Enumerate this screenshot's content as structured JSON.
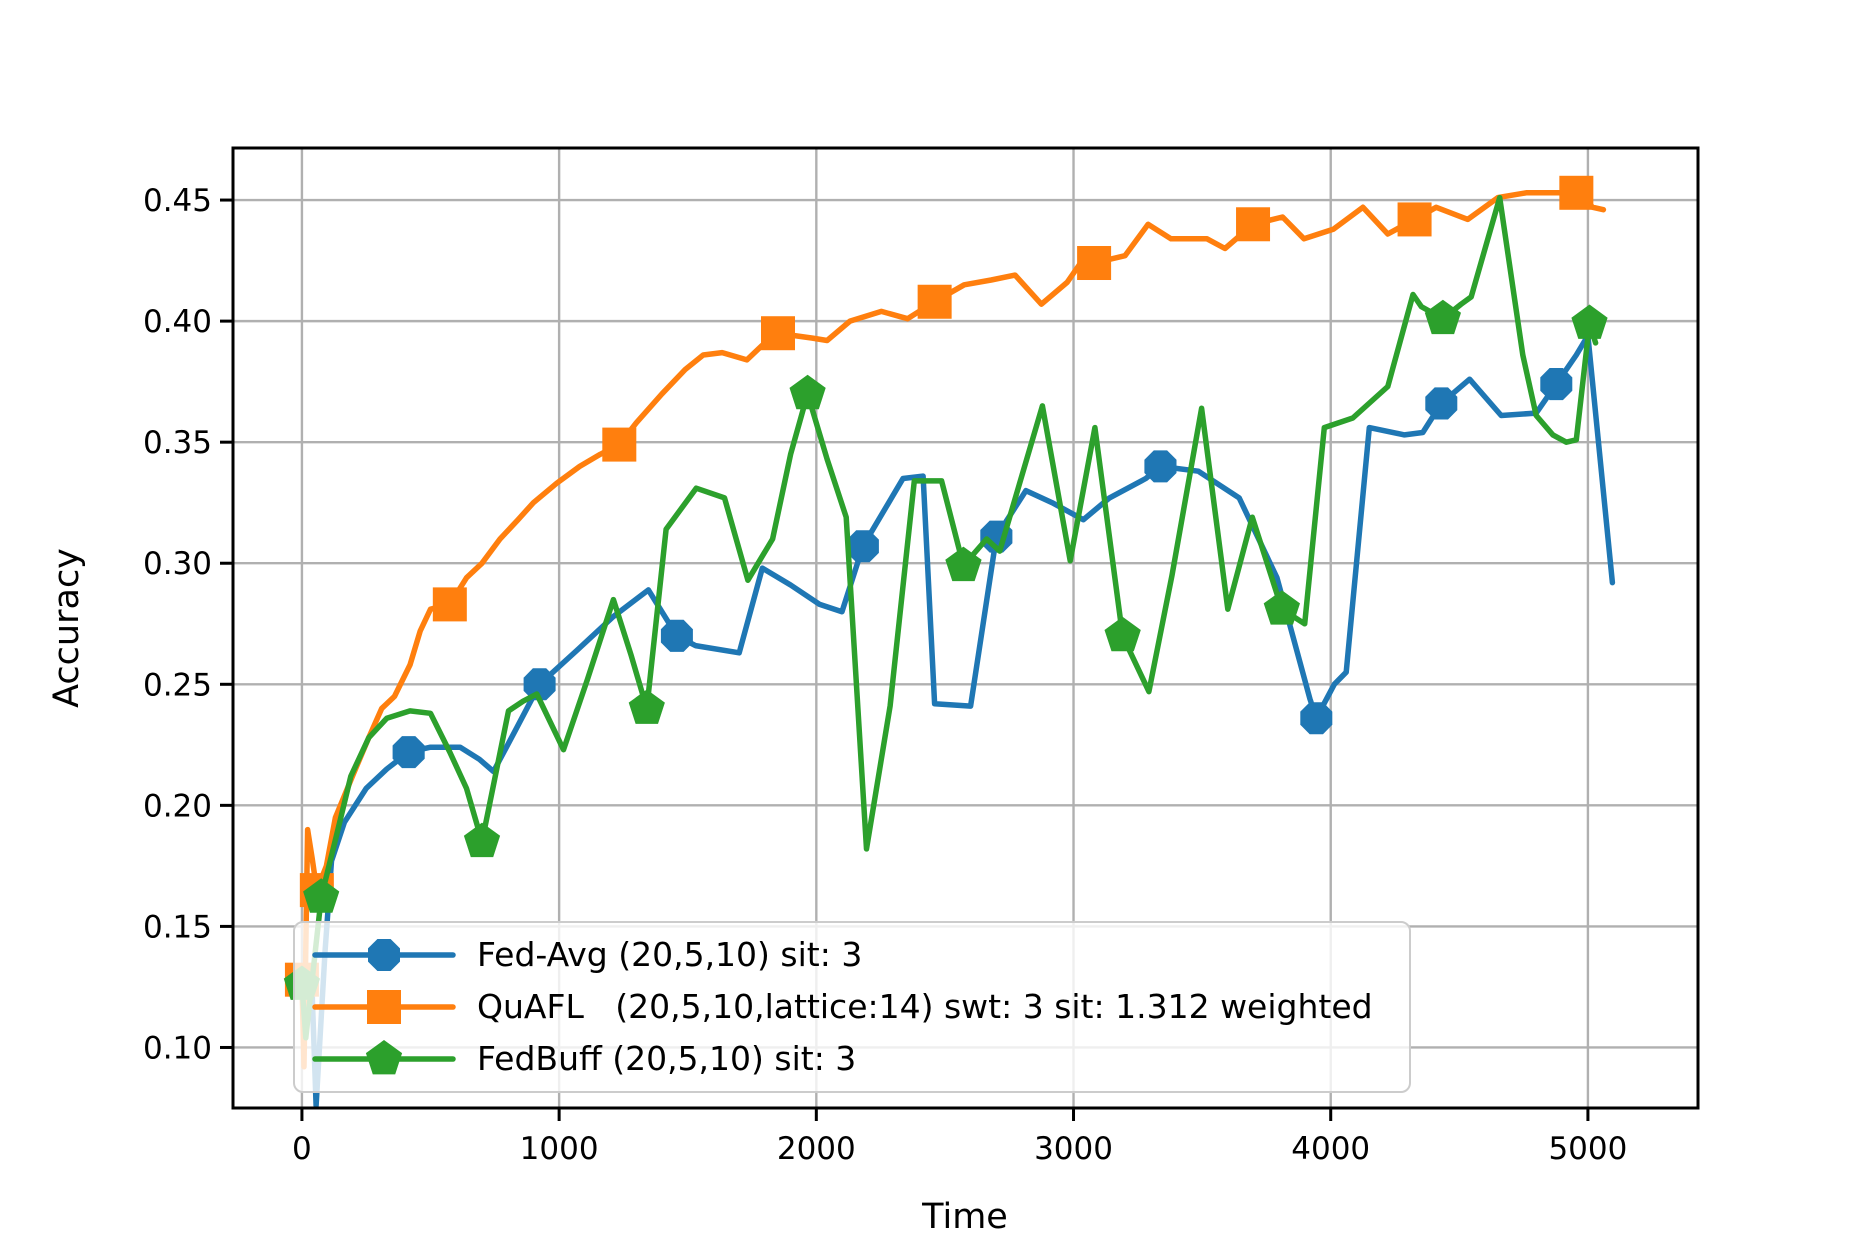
{
  "chart_data": {
    "type": "line",
    "title": "",
    "xlabel": "Time",
    "ylabel": "Accuracy",
    "xlim": [
      -268,
      5428
    ],
    "ylim": [
      0.075,
      0.4715
    ],
    "xticks": [
      0,
      1000,
      2000,
      3000,
      4000,
      5000
    ],
    "yticks": [
      0.1,
      0.15,
      0.2,
      0.25,
      0.3,
      0.35,
      0.4,
      0.45
    ],
    "grid": true,
    "grid_color": "#b0b0b0",
    "legend_position": "lower left",
    "series": [
      {
        "name": "Fed-Avg (20,5,10) sit: 3",
        "color": "#1f77b4",
        "marker": "octagon",
        "line": [
          [
            0,
            0.124
          ],
          [
            40,
            0.122
          ],
          [
            55,
            0.076
          ],
          [
            90,
            0.14
          ],
          [
            115,
            0.177
          ],
          [
            165,
            0.193
          ],
          [
            250,
            0.207
          ],
          [
            330,
            0.215
          ],
          [
            415,
            0.222
          ],
          [
            500,
            0.224
          ],
          [
            615,
            0.224
          ],
          [
            690,
            0.219
          ],
          [
            745,
            0.214
          ],
          [
            830,
            0.231
          ],
          [
            924,
            0.25
          ],
          [
            1069,
            0.264
          ],
          [
            1211,
            0.278
          ],
          [
            1347,
            0.289
          ],
          [
            1458,
            0.27
          ],
          [
            1530,
            0.266
          ],
          [
            1700,
            0.263
          ],
          [
            1790,
            0.298
          ],
          [
            1900,
            0.291
          ],
          [
            2013,
            0.283
          ],
          [
            2100,
            0.28
          ],
          [
            2181,
            0.307
          ],
          [
            2337,
            0.335
          ],
          [
            2415,
            0.336
          ],
          [
            2460,
            0.242
          ],
          [
            2600,
            0.241
          ],
          [
            2700,
            0.311
          ],
          [
            2815,
            0.33
          ],
          [
            2917,
            0.325
          ],
          [
            3038,
            0.318
          ],
          [
            3140,
            0.327
          ],
          [
            3281,
            0.335
          ],
          [
            3338,
            0.34
          ],
          [
            3485,
            0.338
          ],
          [
            3644,
            0.327
          ],
          [
            3791,
            0.294
          ],
          [
            3919,
            0.244
          ],
          [
            3944,
            0.236
          ],
          [
            4014,
            0.25
          ],
          [
            4060,
            0.255
          ],
          [
            4150,
            0.356
          ],
          [
            4287,
            0.353
          ],
          [
            4358,
            0.354
          ],
          [
            4430,
            0.366
          ],
          [
            4540,
            0.376
          ],
          [
            4663,
            0.361
          ],
          [
            4799,
            0.362
          ],
          [
            4877,
            0.374
          ],
          [
            4955,
            0.386
          ],
          [
            5000,
            0.394
          ],
          [
            5095,
            0.292
          ]
        ],
        "markers": [
          [
            415,
            0.222
          ],
          [
            924,
            0.25
          ],
          [
            1458,
            0.27
          ],
          [
            2181,
            0.307
          ],
          [
            2700,
            0.311
          ],
          [
            3338,
            0.34
          ],
          [
            3944,
            0.236
          ],
          [
            4430,
            0.366
          ],
          [
            4877,
            0.374
          ]
        ]
      },
      {
        "name": "QuAFL   (20,5,10,lattice:14) swt: 3 sit: 1.312 weighted",
        "color": "#ff7f0e",
        "marker": "square",
        "line": [
          [
            0,
            0.128
          ],
          [
            8,
            0.092
          ],
          [
            22,
            0.19
          ],
          [
            40,
            0.178
          ],
          [
            58,
            0.165
          ],
          [
            95,
            0.175
          ],
          [
            130,
            0.195
          ],
          [
            200,
            0.213
          ],
          [
            260,
            0.228
          ],
          [
            310,
            0.24
          ],
          [
            360,
            0.245
          ],
          [
            420,
            0.258
          ],
          [
            460,
            0.272
          ],
          [
            500,
            0.281
          ],
          [
            575,
            0.283
          ],
          [
            640,
            0.294
          ],
          [
            700,
            0.3
          ],
          [
            770,
            0.31
          ],
          [
            840,
            0.318
          ],
          [
            900,
            0.325
          ],
          [
            990,
            0.333
          ],
          [
            1080,
            0.34
          ],
          [
            1160,
            0.345
          ],
          [
            1234,
            0.349
          ],
          [
            1300,
            0.358
          ],
          [
            1400,
            0.37
          ],
          [
            1490,
            0.38
          ],
          [
            1560,
            0.386
          ],
          [
            1634,
            0.387
          ],
          [
            1730,
            0.384
          ],
          [
            1790,
            0.39
          ],
          [
            1851,
            0.395
          ],
          [
            1915,
            0.394
          ],
          [
            1985,
            0.393
          ],
          [
            2042,
            0.392
          ],
          [
            2131,
            0.4
          ],
          [
            2253,
            0.404
          ],
          [
            2355,
            0.401
          ],
          [
            2460,
            0.408
          ],
          [
            2575,
            0.415
          ],
          [
            2680,
            0.417
          ],
          [
            2773,
            0.419
          ],
          [
            2875,
            0.407
          ],
          [
            2975,
            0.416
          ],
          [
            3034,
            0.425
          ],
          [
            3080,
            0.424
          ],
          [
            3200,
            0.427
          ],
          [
            3290,
            0.44
          ],
          [
            3379,
            0.434
          ],
          [
            3455,
            0.434
          ],
          [
            3519,
            0.434
          ],
          [
            3589,
            0.43
          ],
          [
            3698,
            0.44
          ],
          [
            3813,
            0.443
          ],
          [
            3896,
            0.434
          ],
          [
            4011,
            0.438
          ],
          [
            4125,
            0.447
          ],
          [
            4222,
            0.436
          ],
          [
            4326,
            0.442
          ],
          [
            4410,
            0.447
          ],
          [
            4533,
            0.442
          ],
          [
            4650,
            0.451
          ],
          [
            4760,
            0.453
          ],
          [
            4864,
            0.453
          ],
          [
            4955,
            0.453
          ],
          [
            5019,
            0.447
          ],
          [
            5060,
            0.446
          ]
        ],
        "markers": [
          [
            0,
            0.128
          ],
          [
            58,
            0.165
          ],
          [
            575,
            0.283
          ],
          [
            1234,
            0.349
          ],
          [
            1851,
            0.395
          ],
          [
            2460,
            0.408
          ],
          [
            3080,
            0.424
          ],
          [
            3698,
            0.44
          ],
          [
            4326,
            0.442
          ],
          [
            4955,
            0.453
          ]
        ]
      },
      {
        "name": "FedBuff (20,5,10) sit: 3",
        "color": "#2ca02c",
        "marker": "pentagon",
        "line": [
          [
            0,
            0.126
          ],
          [
            15,
            0.104
          ],
          [
            75,
            0.162
          ],
          [
            140,
            0.19
          ],
          [
            190,
            0.212
          ],
          [
            260,
            0.228
          ],
          [
            330,
            0.236
          ],
          [
            420,
            0.239
          ],
          [
            500,
            0.238
          ],
          [
            575,
            0.222
          ],
          [
            640,
            0.207
          ],
          [
            700,
            0.185
          ],
          [
            803,
            0.239
          ],
          [
            860,
            0.243
          ],
          [
            913,
            0.246
          ],
          [
            1017,
            0.223
          ],
          [
            1110,
            0.252
          ],
          [
            1211,
            0.285
          ],
          [
            1280,
            0.262
          ],
          [
            1341,
            0.24
          ],
          [
            1416,
            0.314
          ],
          [
            1533,
            0.331
          ],
          [
            1643,
            0.327
          ],
          [
            1734,
            0.293
          ],
          [
            1830,
            0.31
          ],
          [
            1900,
            0.345
          ],
          [
            1966,
            0.37
          ],
          [
            2042,
            0.343
          ],
          [
            2116,
            0.319
          ],
          [
            2195,
            0.182
          ],
          [
            2287,
            0.241
          ],
          [
            2381,
            0.334
          ],
          [
            2487,
            0.334
          ],
          [
            2572,
            0.299
          ],
          [
            2662,
            0.31
          ],
          [
            2713,
            0.305
          ],
          [
            2879,
            0.365
          ],
          [
            2987,
            0.301
          ],
          [
            3083,
            0.356
          ],
          [
            3191,
            0.27
          ],
          [
            3293,
            0.247
          ],
          [
            3383,
            0.295
          ],
          [
            3498,
            0.364
          ],
          [
            3600,
            0.281
          ],
          [
            3695,
            0.319
          ],
          [
            3810,
            0.281
          ],
          [
            3899,
            0.275
          ],
          [
            3975,
            0.356
          ],
          [
            4086,
            0.36
          ],
          [
            4222,
            0.373
          ],
          [
            4320,
            0.411
          ],
          [
            4352,
            0.406
          ],
          [
            4436,
            0.401
          ],
          [
            4507,
            0.407
          ],
          [
            4546,
            0.41
          ],
          [
            4657,
            0.451
          ],
          [
            4747,
            0.386
          ],
          [
            4799,
            0.361
          ],
          [
            4864,
            0.353
          ],
          [
            4916,
            0.35
          ],
          [
            4955,
            0.351
          ],
          [
            5006,
            0.399
          ],
          [
            5030,
            0.391
          ]
        ],
        "markers": [
          [
            0,
            0.126
          ],
          [
            75,
            0.162
          ],
          [
            700,
            0.185
          ],
          [
            1341,
            0.24
          ],
          [
            1966,
            0.37
          ],
          [
            2572,
            0.299
          ],
          [
            3191,
            0.27
          ],
          [
            3810,
            0.281
          ],
          [
            4436,
            0.401
          ],
          [
            5006,
            0.399
          ]
        ]
      }
    ],
    "style": {
      "line_width": 5.5,
      "marker_radius": 17,
      "spine_color": "#000000",
      "tick_length": 13
    }
  },
  "legend": {
    "entries": [
      "Fed-Avg (20,5,10) sit: 3",
      "QuAFL   (20,5,10,lattice:14) swt: 3 sit: 1.312 weighted",
      "FedBuff (20,5,10) sit: 3"
    ]
  }
}
